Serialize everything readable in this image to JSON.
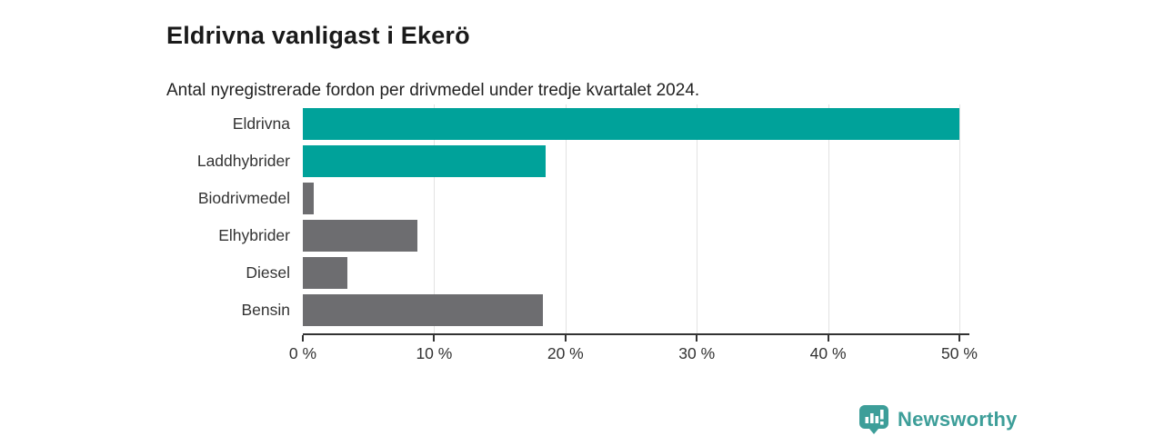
{
  "header": {
    "title": "Eldrivna vanligast i Ekerö",
    "subtitle": "Antal nyregistrerade fordon per drivmedel under tredje kvartalet 2024."
  },
  "chart_data": {
    "type": "bar",
    "orientation": "horizontal",
    "title": "Eldrivna vanligast i Ekerö",
    "subtitle": "Antal nyregistrerade fordon per drivmedel under tredje kvartalet 2024.",
    "categories": [
      "Eldrivna",
      "Laddhybrider",
      "Biodrivmedel",
      "Elhybrider",
      "Diesel",
      "Bensin"
    ],
    "values": [
      50.0,
      18.5,
      0.8,
      8.7,
      3.4,
      18.3
    ],
    "unit": "%",
    "bar_colors": [
      "#00a29a",
      "#00a29a",
      "#6d6d70",
      "#6d6d70",
      "#6d6d70",
      "#6d6d70"
    ],
    "colors": {
      "highlight": "#00a29a",
      "default": "#6d6d70",
      "gridline": "#e2e2e2",
      "axis": "#333333",
      "text": "#333333"
    },
    "xlabel": "",
    "ylabel": "",
    "xlim": [
      0,
      50
    ],
    "x_tick_values": [
      0,
      10,
      20,
      30,
      40,
      50
    ],
    "x_tick_labels": [
      "0 %",
      "10 %",
      "20 %",
      "30 %",
      "40 %",
      "50 %"
    ],
    "grid": true,
    "legend": false
  },
  "footer": {
    "brand": "Newsworthy",
    "brand_color": "#3d9e99",
    "logo_icon": "bar-chart-speech-bubble"
  }
}
